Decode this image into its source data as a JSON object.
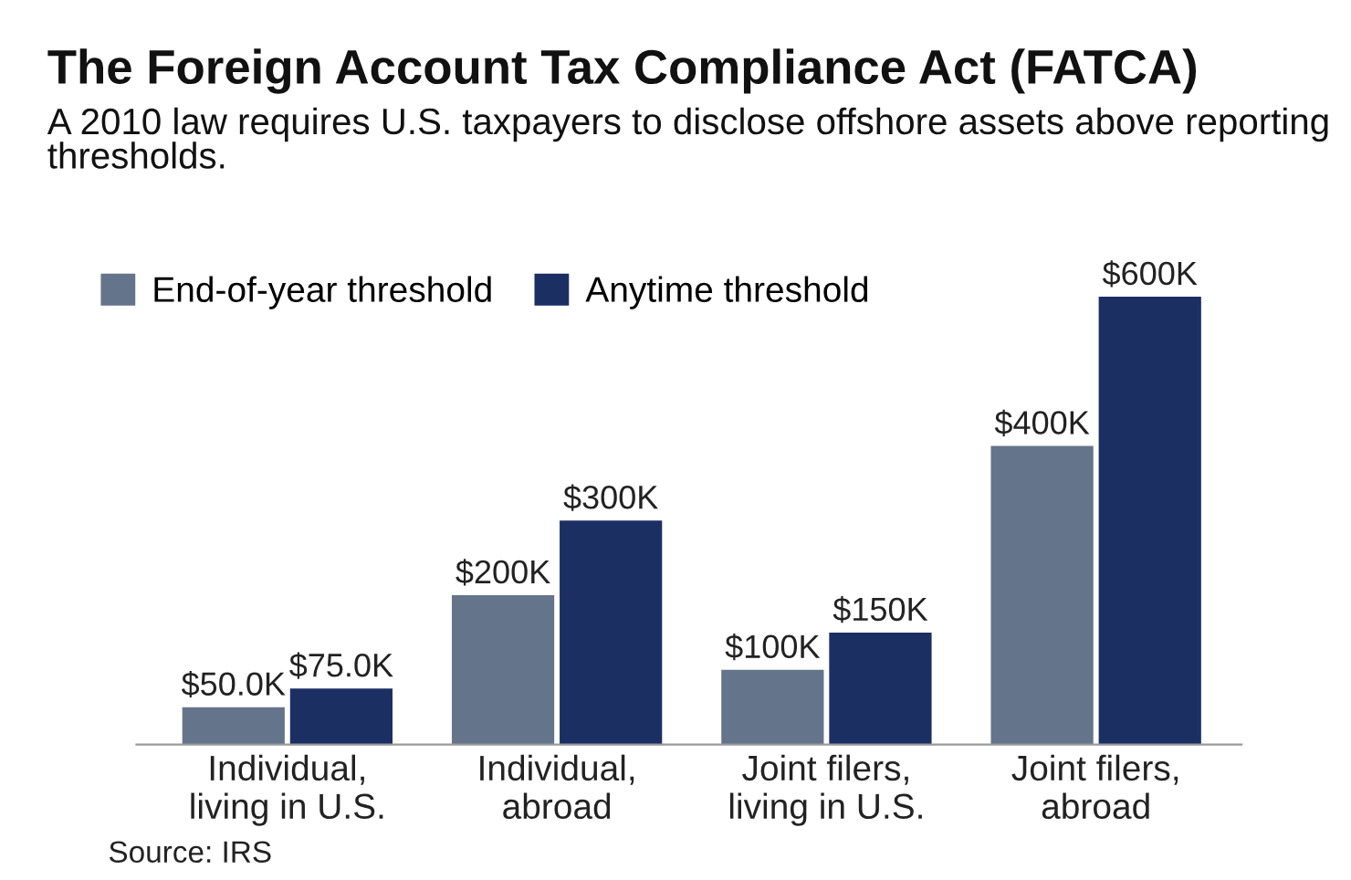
{
  "chart_data": {
    "type": "bar",
    "title": "The Foreign Account Tax Compliance Act (FATCA)",
    "subtitle": "A 2010 law requires U.S. taxpayers to disclose offshore assets above reporting thresholds.",
    "categories": [
      "Individual,\nliving in U.S.",
      "Individual,\nabroad",
      "Joint filers,\nliving in U.S.",
      "Joint filers,\nabroad"
    ],
    "series": [
      {
        "name": "End-of-year threshold",
        "color": "#64748a",
        "values": [
          50,
          200,
          100,
          400
        ],
        "value_labels": [
          "$50.0K",
          "$200K",
          "$100K",
          "$400K"
        ]
      },
      {
        "name": "Anytime threshold",
        "color": "#1b2f63",
        "values": [
          75,
          300,
          150,
          600
        ],
        "value_labels": [
          "$75.0K",
          "$300K",
          "$150K",
          "$600K"
        ]
      }
    ],
    "legend": "top left",
    "annotations": [
      "Source: IRS"
    ]
  }
}
